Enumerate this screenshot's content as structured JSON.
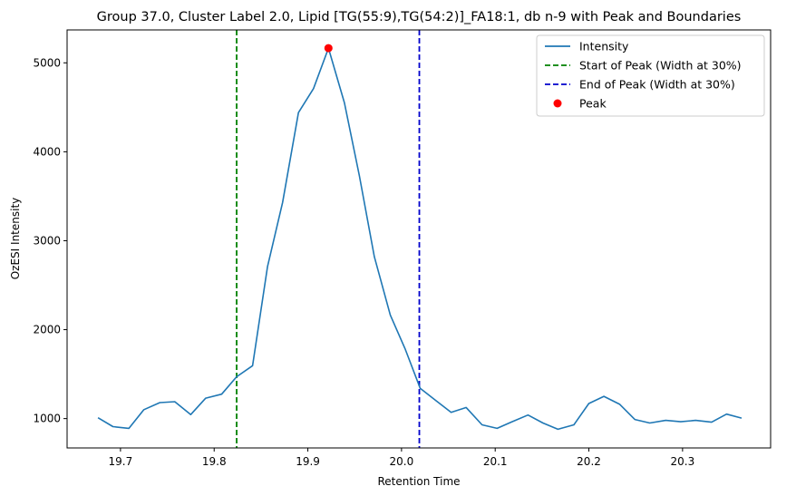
{
  "chart_data": {
    "type": "line",
    "title": "Group 37.0, Cluster Label 2.0, Lipid [TG(55:9),TG(54:2)]_FA18:1, db n-9 with Peak and Boundaries",
    "xlabel": "Retention Time",
    "ylabel": "OzESI Intensity",
    "xlim": [
      19.643,
      20.394
    ],
    "ylim": [
      670,
      5370
    ],
    "x_ticks": [
      19.7,
      19.8,
      19.9,
      20.0,
      20.1,
      20.2,
      20.3
    ],
    "x_tick_labels": [
      "19.7",
      "19.8",
      "19.9",
      "20.0",
      "20.1",
      "20.2",
      "20.3"
    ],
    "y_ticks": [
      1000,
      2000,
      3000,
      4000,
      5000
    ],
    "y_tick_labels": [
      "1000",
      "2000",
      "3000",
      "4000",
      "5000"
    ],
    "grid": false,
    "legend_position": "top-right",
    "series": [
      {
        "name": "Intensity",
        "color": "#1f77b4",
        "x": [
          19.676,
          19.692,
          19.709,
          19.725,
          19.742,
          19.758,
          19.775,
          19.791,
          19.808,
          19.824,
          19.841,
          19.857,
          19.873,
          19.89,
          19.906,
          19.922,
          19.939,
          19.955,
          19.971,
          19.988,
          20.004,
          20.02,
          20.037,
          20.053,
          20.069,
          20.086,
          20.102,
          20.118,
          20.135,
          20.151,
          20.167,
          20.184,
          20.2,
          20.216,
          20.233,
          20.249,
          20.265,
          20.282,
          20.298,
          20.314,
          20.331,
          20.347,
          20.363
        ],
        "y": [
          1010,
          910,
          890,
          1100,
          1180,
          1190,
          1045,
          1230,
          1275,
          1470,
          1595,
          2710,
          3430,
          4440,
          4710,
          5165,
          4550,
          3730,
          2820,
          2165,
          1780,
          1340,
          1200,
          1070,
          1125,
          930,
          890,
          965,
          1040,
          950,
          880,
          930,
          1170,
          1250,
          1160,
          990,
          950,
          980,
          965,
          980,
          960,
          1050,
          1005
        ]
      }
    ],
    "start_line": {
      "name": "Start of Peak (Width at 30%)",
      "x": 19.824,
      "color": "#008000"
    },
    "end_line": {
      "name": "End of Peak (Width at 30%)",
      "x": 20.019,
      "color": "#0000cc"
    },
    "peak": {
      "name": "Peak",
      "x": 19.922,
      "y": 5165,
      "color": "#ff0000"
    }
  }
}
